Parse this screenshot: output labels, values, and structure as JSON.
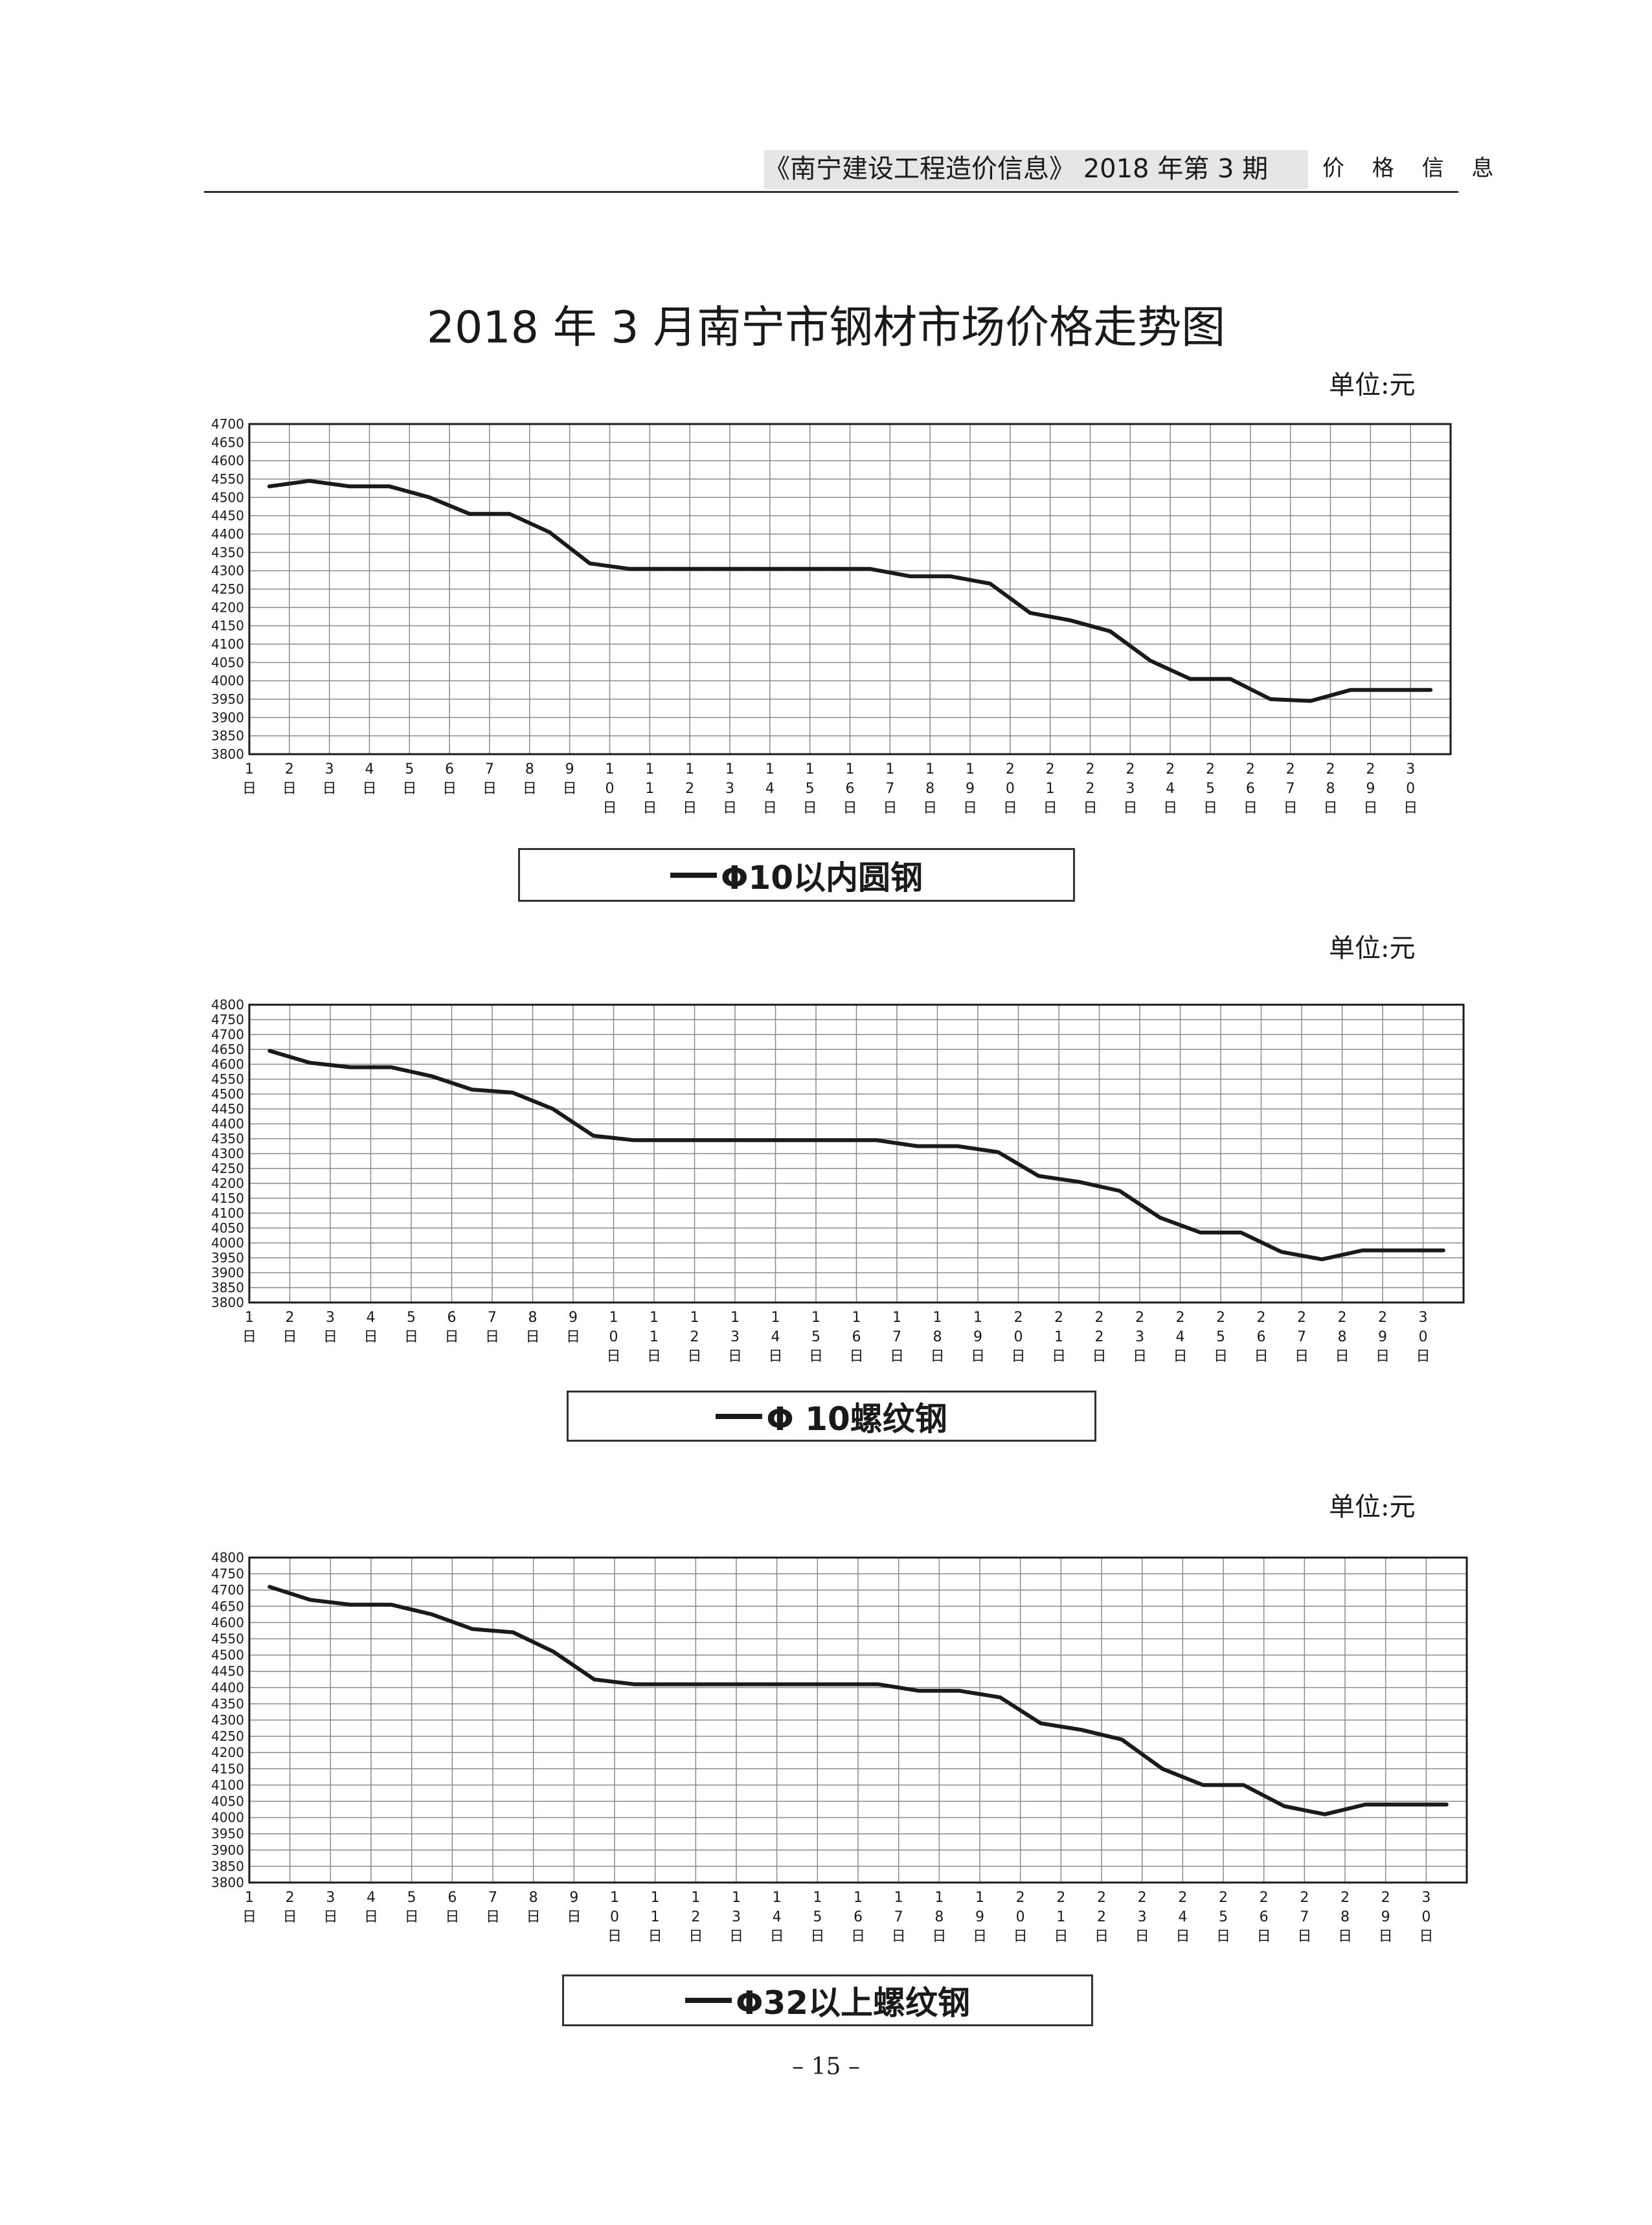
{
  "header": {
    "publication": "《南宁建设工程造价信息》 2018 年第 3 期",
    "section": "价 格 信 息"
  },
  "title": "2018 年 3 月南宁市钢材市场价格走势图",
  "page_number": "– 15 –",
  "chart_data": [
    {
      "type": "line",
      "unit_label": "单位:元",
      "legend": "Φ10以内圆钢",
      "x": [
        "1日",
        "2日",
        "3日",
        "4日",
        "5日",
        "6日",
        "7日",
        "8日",
        "9日",
        "10日",
        "11日",
        "12日",
        "13日",
        "14日",
        "15日",
        "16日",
        "17日",
        "18日",
        "19日",
        "20日",
        "21日",
        "22日",
        "23日",
        "24日",
        "25日",
        "26日",
        "27日",
        "28日",
        "29日",
        "30日"
      ],
      "ylim": [
        3800,
        4700
      ],
      "ystep": 50,
      "series": [
        {
          "values": [
            4530,
            4545,
            4530,
            4530,
            4500,
            4455,
            4455,
            4405,
            4320,
            4305,
            4305,
            4305,
            4305,
            4305,
            4305,
            4305,
            4285,
            4285,
            4265,
            4185,
            4165,
            4135,
            4055,
            4005,
            4005,
            3950,
            3945,
            3975,
            3975,
            3975
          ]
        }
      ],
      "grid": true,
      "legend_position": "bottom-center"
    },
    {
      "type": "line",
      "unit_label": "单位:元",
      "legend": "Φ 10螺纹钢",
      "x": [
        "1日",
        "2日",
        "3日",
        "4日",
        "5日",
        "6日",
        "7日",
        "8日",
        "9日",
        "10日",
        "11日",
        "12日",
        "13日",
        "14日",
        "15日",
        "16日",
        "17日",
        "18日",
        "19日",
        "20日",
        "21日",
        "22日",
        "23日",
        "24日",
        "25日",
        "26日",
        "27日",
        "28日",
        "29日",
        "30日"
      ],
      "ylim": [
        3800,
        4800
      ],
      "ystep": 50,
      "series": [
        {
          "values": [
            4645,
            4605,
            4590,
            4590,
            4560,
            4515,
            4505,
            4450,
            4360,
            4345,
            4345,
            4345,
            4345,
            4345,
            4345,
            4345,
            4325,
            4325,
            4305,
            4225,
            4205,
            4175,
            4085,
            4035,
            4035,
            3970,
            3945,
            3975,
            3975,
            3975
          ]
        }
      ],
      "grid": true,
      "legend_position": "bottom-center"
    },
    {
      "type": "line",
      "unit_label": "单位:元",
      "legend": "Φ32以上螺纹钢",
      "x": [
        "1日",
        "2日",
        "3日",
        "4日",
        "5日",
        "6日",
        "7日",
        "8日",
        "9日",
        "10日",
        "11日",
        "12日",
        "13日",
        "14日",
        "15日",
        "16日",
        "17日",
        "18日",
        "19日",
        "20日",
        "21日",
        "22日",
        "23日",
        "24日",
        "25日",
        "26日",
        "27日",
        "28日",
        "29日",
        "30日"
      ],
      "ylim": [
        3800,
        4800
      ],
      "ystep": 50,
      "series": [
        {
          "values": [
            4710,
            4670,
            4655,
            4655,
            4625,
            4580,
            4570,
            4510,
            4425,
            4410,
            4410,
            4410,
            4410,
            4410,
            4410,
            4410,
            4390,
            4390,
            4370,
            4290,
            4270,
            4240,
            4150,
            4100,
            4100,
            4035,
            4010,
            4040,
            4040,
            4040
          ]
        }
      ],
      "grid": true,
      "legend_position": "bottom-center"
    }
  ]
}
